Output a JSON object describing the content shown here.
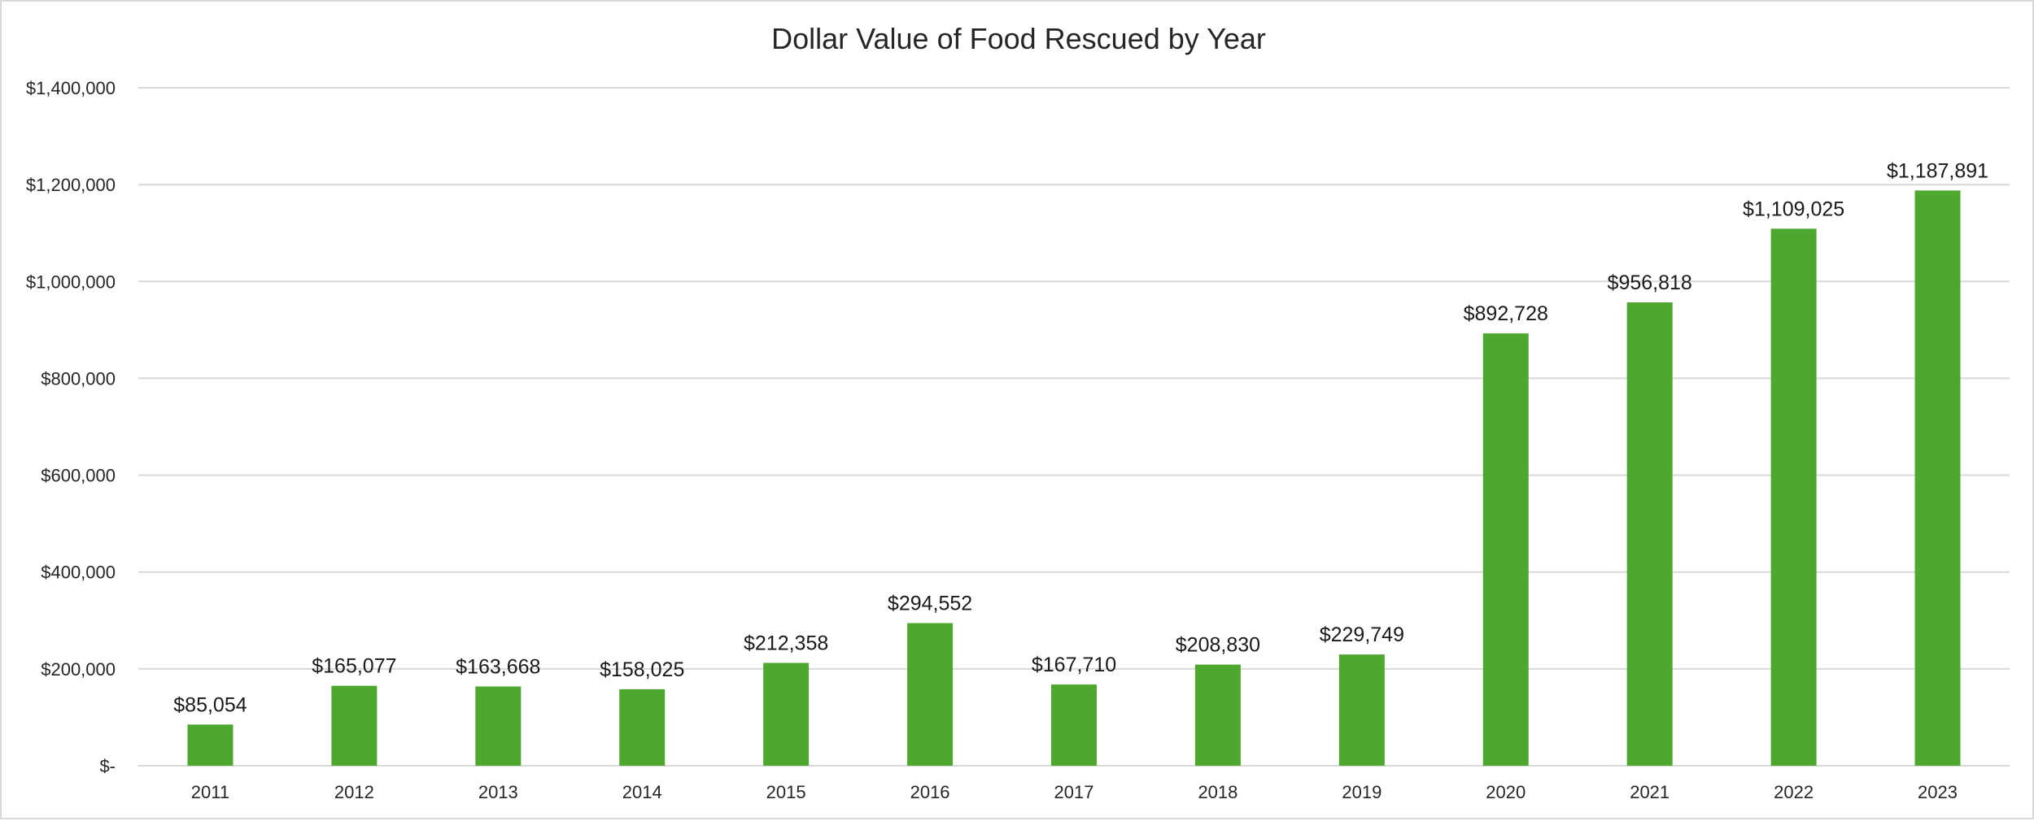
{
  "chart_data": {
    "type": "bar",
    "title": "Dollar Value of Food Rescued by Year",
    "xlabel": "",
    "ylabel": "",
    "categories": [
      "2011",
      "2012",
      "2013",
      "2014",
      "2015",
      "2016",
      "2017",
      "2018",
      "2019",
      "2020",
      "2021",
      "2022",
      "2023"
    ],
    "values": [
      85054,
      165077,
      163668,
      158025,
      212358,
      294552,
      167710,
      208830,
      229749,
      892728,
      956818,
      1109025,
      1187891
    ],
    "data_labels": [
      "$85,054",
      "$165,077",
      "$163,668",
      "$158,025",
      "$212,358",
      "$294,552",
      "$167,710",
      "$208,830",
      "$229,749",
      "$892,728",
      "$956,818",
      "$1,109,025",
      "$1,187,891"
    ],
    "ylim": [
      0,
      1400000
    ],
    "yticks": [
      0,
      200000,
      400000,
      600000,
      800000,
      1000000,
      1200000,
      1400000
    ],
    "ytick_labels": [
      "$-",
      "$200,000",
      "$400,000",
      "$600,000",
      "$800,000",
      "$1,000,000",
      "$1,200,000",
      "$1,400,000"
    ],
    "bar_color": "#4ea72e",
    "grid": true,
    "legend": "none"
  }
}
